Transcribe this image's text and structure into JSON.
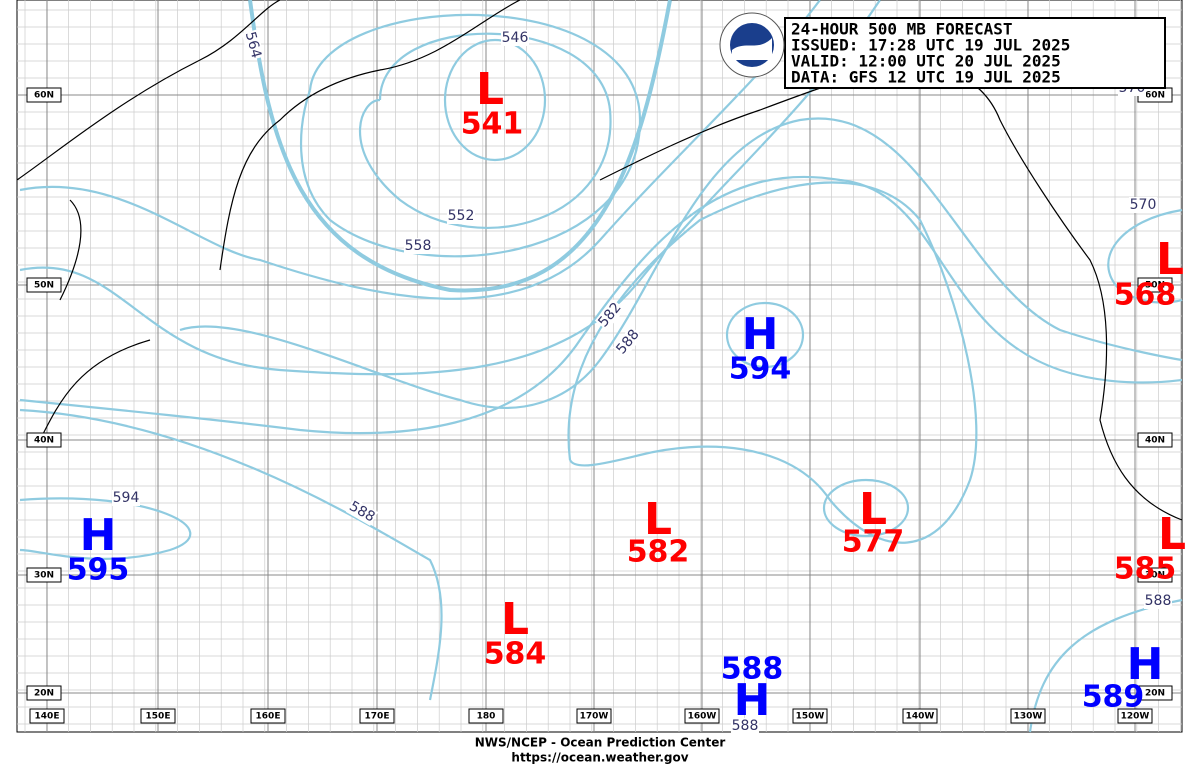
{
  "header": {
    "lines": [
      "24-HOUR 500 MB FORECAST",
      "ISSUED: 17:28 UTC 19 JUL 2025",
      "VALID:  12:00 UTC 20 JUL 2025",
      "DATA:  GFS 12 UTC 19 JUL 2025"
    ]
  },
  "centers": [
    {
      "symbol": "L",
      "value": "541"
    },
    {
      "symbol": "L",
      "value": "568"
    },
    {
      "symbol": "H",
      "value": "594"
    },
    {
      "symbol": "L",
      "value": "582"
    },
    {
      "symbol": "L",
      "value": "577"
    },
    {
      "symbol": "H",
      "value": "595"
    },
    {
      "symbol": "L",
      "value": "584"
    },
    {
      "symbol": "H",
      "value": "588"
    },
    {
      "symbol": "L",
      "value": "585"
    },
    {
      "symbol": "H",
      "value": "589"
    }
  ],
  "contour_labels": [
    "546",
    "552",
    "558",
    "564",
    "570",
    "570",
    "582",
    "588",
    "594",
    "588",
    "588",
    "588"
  ],
  "latitudes": [
    "60N",
    "50N",
    "40N",
    "30N",
    "20N"
  ],
  "longitudes": [
    "140E",
    "150E",
    "160E",
    "170E",
    "180",
    "170W",
    "160W",
    "150W",
    "140W",
    "130W",
    "120W"
  ],
  "footer": {
    "lines": [
      "NWS/NCEP - Ocean Prediction Center",
      "https://ocean.weather.gov"
    ]
  }
}
